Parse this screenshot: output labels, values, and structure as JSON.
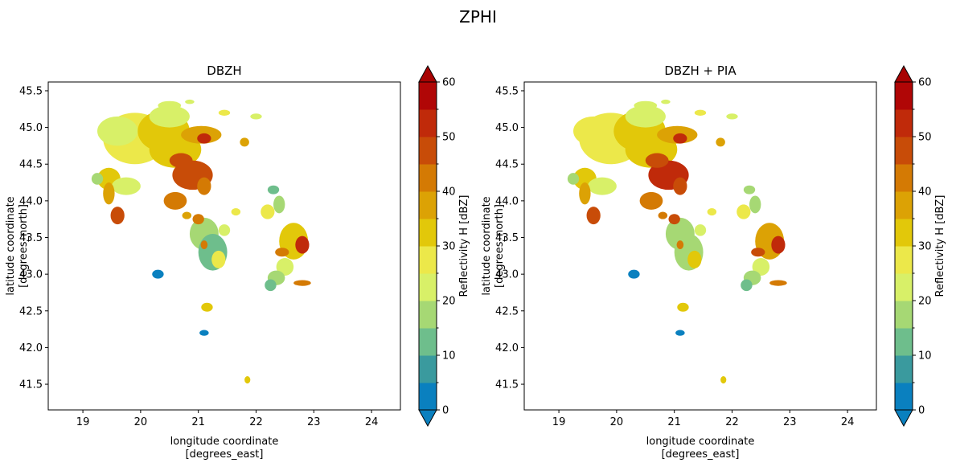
{
  "figure": {
    "suptitle": "ZPHI"
  },
  "colors": {
    "levels": [
      "#0a80bf",
      "#3a9a9e",
      "#6ebe8c",
      "#a6d874",
      "#d8f068",
      "#ece84a",
      "#e2c80a",
      "#dca205",
      "#d47a04",
      "#c84c08",
      "#c02a0a",
      "#b00606"
    ],
    "under": "#0a80bf",
    "over": "#a80202"
  },
  "chart_data": [
    {
      "type": "heatmap",
      "title": "DBZH",
      "xlabel": "longitude coordinate\n[degrees_east]",
      "ylabel": "latitude coordinate\n[degrees_north]",
      "xlim": [
        18.4,
        24.5
      ],
      "ylim": [
        41.15,
        45.62
      ],
      "xticks": [
        19,
        20,
        21,
        22,
        23,
        24
      ],
      "yticks": [
        41.5,
        42.0,
        42.5,
        43.0,
        43.5,
        44.0,
        44.5,
        45.0,
        45.5
      ],
      "grid": false,
      "colorbar": {
        "label": "Reflectivity H [dBZ]",
        "min": 0,
        "max": 60,
        "step": 5,
        "ticks": [
          0,
          10,
          20,
          30,
          40,
          50,
          60
        ],
        "extend": "both"
      },
      "features": [
        {
          "lon": 19.9,
          "lat": 44.85,
          "rx": 0.55,
          "ry": 0.35,
          "dbz": 28
        },
        {
          "lon": 19.6,
          "lat": 44.95,
          "rx": 0.35,
          "ry": 0.2,
          "dbz": 24
        },
        {
          "lon": 20.4,
          "lat": 44.95,
          "rx": 0.45,
          "ry": 0.28,
          "dbz": 30
        },
        {
          "lon": 20.5,
          "lat": 45.15,
          "rx": 0.35,
          "ry": 0.15,
          "dbz": 22
        },
        {
          "lon": 20.6,
          "lat": 44.7,
          "rx": 0.45,
          "ry": 0.25,
          "dbz": 32
        },
        {
          "lon": 20.9,
          "lat": 44.35,
          "rx": 0.35,
          "ry": 0.2,
          "dbz": 48
        },
        {
          "lon": 21.05,
          "lat": 44.9,
          "rx": 0.35,
          "ry": 0.12,
          "dbz": 36
        },
        {
          "lon": 21.1,
          "lat": 44.85,
          "rx": 0.12,
          "ry": 0.07,
          "dbz": 52
        },
        {
          "lon": 21.1,
          "lat": 44.2,
          "rx": 0.12,
          "ry": 0.12,
          "dbz": 44
        },
        {
          "lon": 20.6,
          "lat": 44.0,
          "rx": 0.2,
          "ry": 0.12,
          "dbz": 40
        },
        {
          "lon": 20.7,
          "lat": 44.55,
          "rx": 0.2,
          "ry": 0.1,
          "dbz": 46
        },
        {
          "lon": 19.45,
          "lat": 44.3,
          "rx": 0.2,
          "ry": 0.15,
          "dbz": 30
        },
        {
          "lon": 19.75,
          "lat": 44.2,
          "rx": 0.25,
          "ry": 0.12,
          "dbz": 22
        },
        {
          "lon": 19.45,
          "lat": 44.1,
          "rx": 0.1,
          "ry": 0.15,
          "dbz": 36
        },
        {
          "lon": 19.6,
          "lat": 43.8,
          "rx": 0.12,
          "ry": 0.12,
          "dbz": 46
        },
        {
          "lon": 19.25,
          "lat": 44.3,
          "rx": 0.1,
          "ry": 0.08,
          "dbz": 18
        },
        {
          "lon": 20.5,
          "lat": 45.3,
          "rx": 0.2,
          "ry": 0.06,
          "dbz": 22
        },
        {
          "lon": 21.1,
          "lat": 43.55,
          "rx": 0.25,
          "ry": 0.22,
          "dbz": 18
        },
        {
          "lon": 21.25,
          "lat": 43.3,
          "rx": 0.25,
          "ry": 0.25,
          "dbz": 14
        },
        {
          "lon": 21.35,
          "lat": 43.2,
          "rx": 0.12,
          "ry": 0.12,
          "dbz": 28
        },
        {
          "lon": 21.0,
          "lat": 43.75,
          "rx": 0.1,
          "ry": 0.07,
          "dbz": 44
        },
        {
          "lon": 20.8,
          "lat": 43.8,
          "rx": 0.08,
          "ry": 0.05,
          "dbz": 38
        },
        {
          "lon": 21.1,
          "lat": 43.4,
          "rx": 0.06,
          "ry": 0.06,
          "dbz": 40
        },
        {
          "lon": 21.45,
          "lat": 43.6,
          "rx": 0.1,
          "ry": 0.08,
          "dbz": 22
        },
        {
          "lon": 22.2,
          "lat": 43.85,
          "rx": 0.12,
          "ry": 0.1,
          "dbz": 26
        },
        {
          "lon": 22.4,
          "lat": 43.95,
          "rx": 0.1,
          "ry": 0.12,
          "dbz": 18
        },
        {
          "lon": 22.5,
          "lat": 43.1,
          "rx": 0.15,
          "ry": 0.12,
          "dbz": 22
        },
        {
          "lon": 22.65,
          "lat": 43.45,
          "rx": 0.25,
          "ry": 0.25,
          "dbz": 34
        },
        {
          "lon": 22.8,
          "lat": 43.4,
          "rx": 0.12,
          "ry": 0.12,
          "dbz": 50
        },
        {
          "lon": 22.45,
          "lat": 43.3,
          "rx": 0.12,
          "ry": 0.06,
          "dbz": 44
        },
        {
          "lon": 22.35,
          "lat": 42.95,
          "rx": 0.15,
          "ry": 0.1,
          "dbz": 18
        },
        {
          "lon": 22.8,
          "lat": 42.88,
          "rx": 0.15,
          "ry": 0.04,
          "dbz": 42
        },
        {
          "lon": 22.25,
          "lat": 42.85,
          "rx": 0.1,
          "ry": 0.08,
          "dbz": 12
        },
        {
          "lon": 21.15,
          "lat": 42.55,
          "rx": 0.1,
          "ry": 0.06,
          "dbz": 30
        },
        {
          "lon": 21.1,
          "lat": 42.2,
          "rx": 0.08,
          "ry": 0.04,
          "dbz": 2
        },
        {
          "lon": 21.85,
          "lat": 41.56,
          "rx": 0.05,
          "ry": 0.05,
          "dbz": 30
        },
        {
          "lon": 21.45,
          "lat": 45.2,
          "rx": 0.1,
          "ry": 0.04,
          "dbz": 26
        },
        {
          "lon": 21.8,
          "lat": 44.8,
          "rx": 0.08,
          "ry": 0.06,
          "dbz": 36
        },
        {
          "lon": 22.0,
          "lat": 45.15,
          "rx": 0.1,
          "ry": 0.04,
          "dbz": 20
        },
        {
          "lon": 22.3,
          "lat": 44.15,
          "rx": 0.1,
          "ry": 0.06,
          "dbz": 14
        },
        {
          "lon": 20.3,
          "lat": 43.0,
          "rx": 0.1,
          "ry": 0.06,
          "dbz": 2
        },
        {
          "lon": 21.65,
          "lat": 43.85,
          "rx": 0.08,
          "ry": 0.05,
          "dbz": 26
        },
        {
          "lon": 20.85,
          "lat": 45.35,
          "rx": 0.08,
          "ry": 0.03,
          "dbz": 22
        }
      ]
    },
    {
      "type": "heatmap",
      "title": "DBZH + PIA",
      "xlabel": "longitude coordinate\n[degrees_east]",
      "ylabel": "latitude coordinate\n[degrees_north]",
      "xlim": [
        18.4,
        24.5
      ],
      "ylim": [
        41.15,
        45.62
      ],
      "xticks": [
        19,
        20,
        21,
        22,
        23,
        24
      ],
      "yticks": [
        41.5,
        42.0,
        42.5,
        43.0,
        43.5,
        44.0,
        44.5,
        45.0,
        45.5
      ],
      "grid": false,
      "colorbar": {
        "label": "Reflectivity H [dBZ]",
        "min": 0,
        "max": 60,
        "step": 5,
        "ticks": [
          0,
          10,
          20,
          30,
          40,
          50,
          60
        ],
        "extend": "both"
      },
      "features": [
        {
          "lon": 19.9,
          "lat": 44.85,
          "rx": 0.55,
          "ry": 0.35,
          "dbz": 29
        },
        {
          "lon": 19.6,
          "lat": 44.95,
          "rx": 0.35,
          "ry": 0.2,
          "dbz": 25
        },
        {
          "lon": 20.4,
          "lat": 44.95,
          "rx": 0.45,
          "ry": 0.28,
          "dbz": 31
        },
        {
          "lon": 20.5,
          "lat": 45.15,
          "rx": 0.35,
          "ry": 0.15,
          "dbz": 23
        },
        {
          "lon": 20.6,
          "lat": 44.7,
          "rx": 0.45,
          "ry": 0.25,
          "dbz": 34
        },
        {
          "lon": 20.9,
          "lat": 44.35,
          "rx": 0.35,
          "ry": 0.2,
          "dbz": 50
        },
        {
          "lon": 21.05,
          "lat": 44.9,
          "rx": 0.35,
          "ry": 0.12,
          "dbz": 38
        },
        {
          "lon": 21.1,
          "lat": 44.85,
          "rx": 0.12,
          "ry": 0.07,
          "dbz": 54
        },
        {
          "lon": 21.1,
          "lat": 44.2,
          "rx": 0.12,
          "ry": 0.12,
          "dbz": 46
        },
        {
          "lon": 20.6,
          "lat": 44.0,
          "rx": 0.2,
          "ry": 0.12,
          "dbz": 42
        },
        {
          "lon": 20.7,
          "lat": 44.55,
          "rx": 0.2,
          "ry": 0.1,
          "dbz": 48
        },
        {
          "lon": 19.45,
          "lat": 44.3,
          "rx": 0.2,
          "ry": 0.15,
          "dbz": 32
        },
        {
          "lon": 19.75,
          "lat": 44.2,
          "rx": 0.25,
          "ry": 0.12,
          "dbz": 23
        },
        {
          "lon": 19.45,
          "lat": 44.1,
          "rx": 0.1,
          "ry": 0.15,
          "dbz": 38
        },
        {
          "lon": 19.6,
          "lat": 43.8,
          "rx": 0.12,
          "ry": 0.12,
          "dbz": 48
        },
        {
          "lon": 19.25,
          "lat": 44.3,
          "rx": 0.1,
          "ry": 0.08,
          "dbz": 19
        },
        {
          "lon": 20.5,
          "lat": 45.3,
          "rx": 0.2,
          "ry": 0.06,
          "dbz": 23
        },
        {
          "lon": 21.1,
          "lat": 43.55,
          "rx": 0.25,
          "ry": 0.22,
          "dbz": 19
        },
        {
          "lon": 21.25,
          "lat": 43.3,
          "rx": 0.25,
          "ry": 0.25,
          "dbz": 15
        },
        {
          "lon": 21.35,
          "lat": 43.2,
          "rx": 0.12,
          "ry": 0.12,
          "dbz": 30
        },
        {
          "lon": 21.0,
          "lat": 43.75,
          "rx": 0.1,
          "ry": 0.07,
          "dbz": 46
        },
        {
          "lon": 20.8,
          "lat": 43.8,
          "rx": 0.08,
          "ry": 0.05,
          "dbz": 40
        },
        {
          "lon": 21.1,
          "lat": 43.4,
          "rx": 0.06,
          "ry": 0.06,
          "dbz": 42
        },
        {
          "lon": 21.45,
          "lat": 43.6,
          "rx": 0.1,
          "ry": 0.08,
          "dbz": 23
        },
        {
          "lon": 22.2,
          "lat": 43.85,
          "rx": 0.12,
          "ry": 0.1,
          "dbz": 28
        },
        {
          "lon": 22.4,
          "lat": 43.95,
          "rx": 0.1,
          "ry": 0.12,
          "dbz": 19
        },
        {
          "lon": 22.5,
          "lat": 43.1,
          "rx": 0.15,
          "ry": 0.12,
          "dbz": 23
        },
        {
          "lon": 22.65,
          "lat": 43.45,
          "rx": 0.25,
          "ry": 0.25,
          "dbz": 36
        },
        {
          "lon": 22.8,
          "lat": 43.4,
          "rx": 0.12,
          "ry": 0.12,
          "dbz": 52
        },
        {
          "lon": 22.45,
          "lat": 43.3,
          "rx": 0.12,
          "ry": 0.06,
          "dbz": 46
        },
        {
          "lon": 22.35,
          "lat": 42.95,
          "rx": 0.15,
          "ry": 0.1,
          "dbz": 19
        },
        {
          "lon": 22.8,
          "lat": 42.88,
          "rx": 0.15,
          "ry": 0.04,
          "dbz": 44
        },
        {
          "lon": 22.25,
          "lat": 42.85,
          "rx": 0.1,
          "ry": 0.08,
          "dbz": 13
        },
        {
          "lon": 21.15,
          "lat": 42.55,
          "rx": 0.1,
          "ry": 0.06,
          "dbz": 31
        },
        {
          "lon": 21.1,
          "lat": 42.2,
          "rx": 0.08,
          "ry": 0.04,
          "dbz": 2
        },
        {
          "lon": 21.85,
          "lat": 41.56,
          "rx": 0.05,
          "ry": 0.05,
          "dbz": 31
        },
        {
          "lon": 21.45,
          "lat": 45.2,
          "rx": 0.1,
          "ry": 0.04,
          "dbz": 27
        },
        {
          "lon": 21.8,
          "lat": 44.8,
          "rx": 0.08,
          "ry": 0.06,
          "dbz": 38
        },
        {
          "lon": 22.0,
          "lat": 45.15,
          "rx": 0.1,
          "ry": 0.04,
          "dbz": 21
        },
        {
          "lon": 22.3,
          "lat": 44.15,
          "rx": 0.1,
          "ry": 0.06,
          "dbz": 15
        },
        {
          "lon": 20.3,
          "lat": 43.0,
          "rx": 0.1,
          "ry": 0.06,
          "dbz": 2
        },
        {
          "lon": 21.65,
          "lat": 43.85,
          "rx": 0.08,
          "ry": 0.05,
          "dbz": 27
        },
        {
          "lon": 20.85,
          "lat": 45.35,
          "rx": 0.08,
          "ry": 0.03,
          "dbz": 23
        }
      ]
    }
  ]
}
